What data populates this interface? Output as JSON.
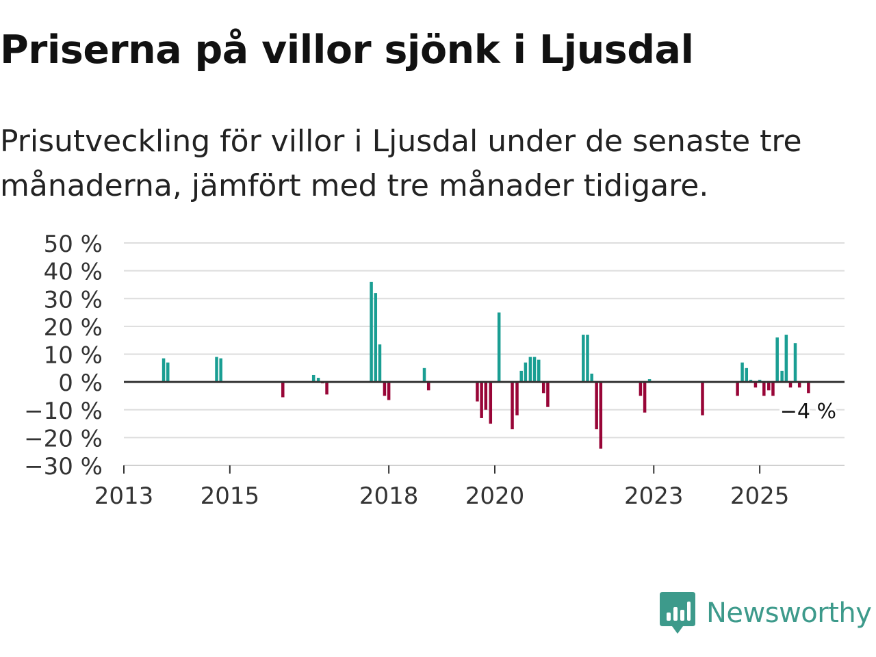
{
  "title": "Priserna på villor sjönk i Ljusdal",
  "subtitle": "Prisutveckling för villor i Ljusdal under de senaste tre månaderna, jämfört med tre månader tidigare.",
  "brand": {
    "name": "Newsworthy"
  },
  "colors": {
    "positive": "#1a9e93",
    "negative": "#980537",
    "grid": "#dddddd",
    "axis": "#333333",
    "brand": "#3d9a8b"
  },
  "chart_data": {
    "type": "bar",
    "title": "Priserna på villor sjönk i Ljusdal",
    "xlabel": "",
    "ylabel": "",
    "x_range": [
      2013,
      2026.6
    ],
    "ylim": [
      -30,
      50
    ],
    "y_ticks": [
      50,
      40,
      30,
      20,
      10,
      0,
      -10,
      -20,
      -30
    ],
    "y_tick_labels": [
      "50 %",
      "40 %",
      "30 %",
      "20 %",
      "10 %",
      "0 %",
      "−10 %",
      "−20 %",
      "−30 %"
    ],
    "x_ticks": [
      2013,
      2015,
      2018,
      2020,
      2023,
      2025
    ],
    "x_tick_labels": [
      "2013",
      "2015",
      "2018",
      "2020",
      "2023",
      "2025"
    ],
    "grid": true,
    "units": "%",
    "series": [
      {
        "name": "Prisutveckling",
        "points": [
          {
            "x": 2013.75,
            "value": 8.5
          },
          {
            "x": 2013.83,
            "value": 7
          },
          {
            "x": 2014.75,
            "value": 9
          },
          {
            "x": 2014.83,
            "value": 8.5
          },
          {
            "x": 2016.0,
            "value": -5.5
          },
          {
            "x": 2016.58,
            "value": 2.5
          },
          {
            "x": 2016.67,
            "value": 1.5
          },
          {
            "x": 2016.75,
            "value": -0.5
          },
          {
            "x": 2016.83,
            "value": -4.5
          },
          {
            "x": 2017.67,
            "value": 36
          },
          {
            "x": 2017.75,
            "value": 32
          },
          {
            "x": 2017.83,
            "value": 13.5
          },
          {
            "x": 2017.92,
            "value": -5
          },
          {
            "x": 2018.0,
            "value": -6.5
          },
          {
            "x": 2018.67,
            "value": 5
          },
          {
            "x": 2018.75,
            "value": -3
          },
          {
            "x": 2019.67,
            "value": -7
          },
          {
            "x": 2019.75,
            "value": -13
          },
          {
            "x": 2019.83,
            "value": -10
          },
          {
            "x": 2019.92,
            "value": -15
          },
          {
            "x": 2020.08,
            "value": 25
          },
          {
            "x": 2020.33,
            "value": -17
          },
          {
            "x": 2020.42,
            "value": -12
          },
          {
            "x": 2020.5,
            "value": 4
          },
          {
            "x": 2020.58,
            "value": 7
          },
          {
            "x": 2020.67,
            "value": 9
          },
          {
            "x": 2020.75,
            "value": 9
          },
          {
            "x": 2020.83,
            "value": 8
          },
          {
            "x": 2020.92,
            "value": -4
          },
          {
            "x": 2021.0,
            "value": -9
          },
          {
            "x": 2021.67,
            "value": 17
          },
          {
            "x": 2021.75,
            "value": 17
          },
          {
            "x": 2021.83,
            "value": 3
          },
          {
            "x": 2021.92,
            "value": -17
          },
          {
            "x": 2022.0,
            "value": -24
          },
          {
            "x": 2022.75,
            "value": -5
          },
          {
            "x": 2022.83,
            "value": -11
          },
          {
            "x": 2022.92,
            "value": 1
          },
          {
            "x": 2023.92,
            "value": -12
          },
          {
            "x": 2024.58,
            "value": -5
          },
          {
            "x": 2024.67,
            "value": 7
          },
          {
            "x": 2024.75,
            "value": 5
          },
          {
            "x": 2024.83,
            "value": 0.8
          },
          {
            "x": 2024.92,
            "value": -2
          },
          {
            "x": 2025.0,
            "value": 0.8
          },
          {
            "x": 2025.08,
            "value": -5
          },
          {
            "x": 2025.17,
            "value": -3
          },
          {
            "x": 2025.25,
            "value": -5
          },
          {
            "x": 2025.33,
            "value": 16
          },
          {
            "x": 2025.42,
            "value": 4
          },
          {
            "x": 2025.5,
            "value": 17
          },
          {
            "x": 2025.58,
            "value": -2
          },
          {
            "x": 2025.67,
            "value": 14
          },
          {
            "x": 2025.75,
            "value": -2
          },
          {
            "x": 2025.92,
            "value": -4
          }
        ]
      }
    ],
    "annotations": [
      {
        "text": "−4 %",
        "x": 2025.92,
        "value": -4
      }
    ]
  }
}
